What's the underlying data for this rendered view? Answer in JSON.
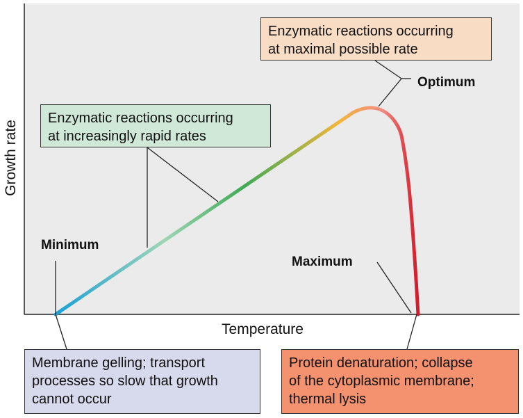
{
  "chart_data": {
    "type": "line",
    "xlabel": "Temperature",
    "ylabel": "Growth rate",
    "grid": false,
    "ticks": false,
    "cardinal_points": [
      {
        "name": "Minimum",
        "label": "Minimum"
      },
      {
        "name": "Optimum",
        "label": "Optimum"
      },
      {
        "name": "Maximum",
        "label": "Maximum"
      }
    ],
    "gradient_colors": [
      "#1aa0d8",
      "#9fd6b6",
      "#3faa55",
      "#f2b73a",
      "#f28c82",
      "#d21a2a"
    ],
    "annotations": {
      "increasing": {
        "lines": [
          "Enzymatic reactions occurring",
          "at increasingly rapid rates"
        ],
        "color": "#cfe8d8"
      },
      "optimum": {
        "lines": [
          "Enzymatic reactions occurring",
          "at maximal possible rate"
        ],
        "color": "#f8dcc4"
      },
      "minimum": {
        "lines": [
          "Membrane gelling; transport",
          "processes so slow that growth",
          "cannot occur"
        ],
        "color": "#d7d9ec"
      },
      "maximum": {
        "lines": [
          "Protein denaturation; collapse",
          "of the cytoplasmic membrane;",
          "thermal lysis"
        ],
        "color": "#f4916e"
      }
    }
  }
}
